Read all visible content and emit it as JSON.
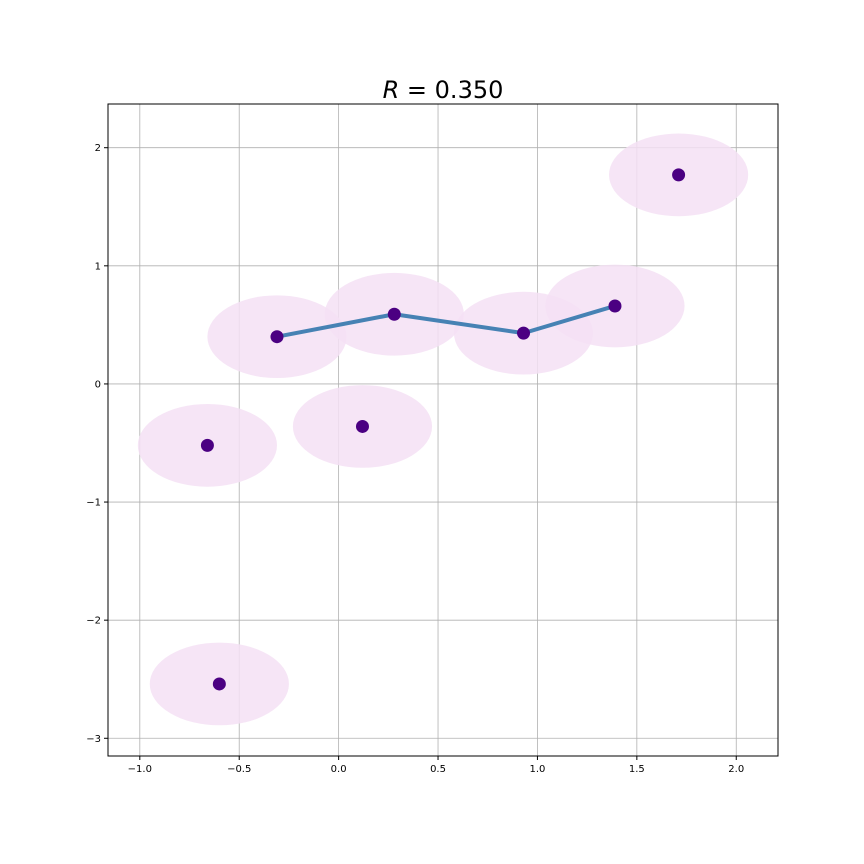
{
  "chart_data": {
    "type": "scatter",
    "title": "R = 0.350",
    "title_var": "R",
    "title_rest": " = 0.350",
    "xlabel": "",
    "ylabel": "",
    "xlim": [
      -1.16,
      2.21
    ],
    "ylim": [
      -3.15,
      2.37
    ],
    "grid": true,
    "x_ticks": [
      -1.0,
      -0.5,
      0.0,
      0.5,
      1.0,
      1.5,
      2.0
    ],
    "x_tick_labels": [
      "−1.0",
      "−0.5",
      "0.0",
      "0.5",
      "1.0",
      "1.5",
      "2.0"
    ],
    "y_ticks": [
      -3,
      -2,
      -1,
      0,
      1,
      2
    ],
    "y_tick_labels": [
      "−3",
      "−2",
      "−1",
      "0",
      "1",
      "2"
    ],
    "radius": 0.35,
    "points": [
      {
        "x": 1.71,
        "y": 1.77
      },
      {
        "x": -0.31,
        "y": 0.4
      },
      {
        "x": 0.28,
        "y": 0.59
      },
      {
        "x": 0.93,
        "y": 0.43
      },
      {
        "x": 1.39,
        "y": 0.66
      },
      {
        "x": -0.66,
        "y": -0.52
      },
      {
        "x": 0.12,
        "y": -0.36
      },
      {
        "x": -0.6,
        "y": -2.54
      }
    ],
    "path": [
      {
        "x": -0.31,
        "y": 0.4
      },
      {
        "x": 0.28,
        "y": 0.59
      },
      {
        "x": 0.93,
        "y": 0.43
      },
      {
        "x": 1.39,
        "y": 0.66
      }
    ],
    "colors": {
      "point": "#4b0082",
      "circle_fill": "#f5e1f5",
      "path": "#4682b4",
      "grid": "#b0b0b0",
      "axes": "#000000"
    }
  }
}
